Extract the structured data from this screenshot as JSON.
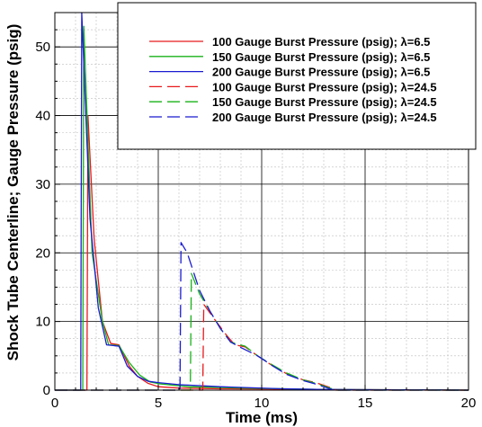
{
  "chart_data": {
    "type": "line",
    "xlabel": "Time (ms)",
    "ylabel": "Shock Tube Centerline; Gauge Pressure (psig)",
    "xlim": [
      0,
      20
    ],
    "ylim": [
      0,
      55
    ],
    "xticks": [
      0,
      5,
      10,
      15,
      20
    ],
    "yticks": [
      0,
      10,
      20,
      30,
      40,
      50
    ],
    "xtick_labels": [
      "0",
      "5",
      "10",
      "15",
      "20"
    ],
    "ytick_labels": [
      "0",
      "10",
      "20",
      "30",
      "40",
      "50"
    ],
    "grid": true,
    "legend_position": "top-right",
    "series": [
      {
        "name": "100 Gauge Burst Pressure (psig); λ=6.5",
        "color": "#e8191c",
        "dash": "solid",
        "points": [
          [
            0,
            0
          ],
          [
            1.55,
            0
          ],
          [
            1.6,
            40
          ],
          [
            1.9,
            22
          ],
          [
            2.3,
            10
          ],
          [
            2.7,
            6.8
          ],
          [
            3.1,
            6.6
          ],
          [
            3.6,
            3.5
          ],
          [
            4.0,
            2.0
          ],
          [
            4.5,
            1.0
          ],
          [
            5.0,
            0.5
          ],
          [
            6.0,
            0.3
          ],
          [
            8.0,
            0.2
          ],
          [
            13.0,
            0.1
          ],
          [
            20,
            0
          ]
        ]
      },
      {
        "name": "150 Gauge Burst Pressure (psig); λ=6.5",
        "color": "#18b218",
        "dash": "solid",
        "points": [
          [
            0,
            0
          ],
          [
            1.35,
            0
          ],
          [
            1.4,
            53
          ],
          [
            1.8,
            20
          ],
          [
            2.3,
            10
          ],
          [
            2.6,
            6.6
          ],
          [
            3.1,
            6.5
          ],
          [
            3.6,
            4.0
          ],
          [
            4.1,
            2.2
          ],
          [
            4.6,
            1.2
          ],
          [
            5.1,
            0.9
          ],
          [
            6.5,
            0.5
          ],
          [
            9.0,
            0.3
          ],
          [
            13.0,
            0.1
          ],
          [
            20,
            0
          ]
        ]
      },
      {
        "name": "200 Gauge Burst Pressure (psig); λ=6.5",
        "color": "#1b1bd1",
        "dash": "solid",
        "points": [
          [
            0,
            0
          ],
          [
            1.25,
            0
          ],
          [
            1.3,
            55
          ],
          [
            1.7,
            25
          ],
          [
            2.1,
            12
          ],
          [
            2.5,
            6.6
          ],
          [
            3.1,
            6.4
          ],
          [
            3.5,
            3.5
          ],
          [
            4.0,
            2.0
          ],
          [
            4.5,
            1.3
          ],
          [
            5.0,
            1.1
          ],
          [
            6.0,
            0.8
          ],
          [
            8.0,
            0.5
          ],
          [
            11.0,
            0.2
          ],
          [
            13.0,
            0.1
          ],
          [
            20,
            0
          ]
        ]
      },
      {
        "name": "100 Gauge Burst Pressure (psig); λ=24.5",
        "color": "#e8191c",
        "dash": "long",
        "points": [
          [
            0,
            0
          ],
          [
            7.15,
            0
          ],
          [
            7.2,
            12.5
          ],
          [
            7.8,
            10.0
          ],
          [
            8.3,
            8.0
          ],
          [
            8.7,
            6.6
          ],
          [
            9.2,
            6.3
          ],
          [
            9.8,
            5.0
          ],
          [
            10.5,
            3.6
          ],
          [
            11.2,
            2.4
          ],
          [
            12.0,
            1.5
          ],
          [
            12.6,
            1.1
          ],
          [
            13.0,
            0.7
          ],
          [
            13.4,
            0.3
          ],
          [
            13.6,
            0
          ],
          [
            20,
            0
          ]
        ]
      },
      {
        "name": "150 Gauge Burst Pressure (psig); λ=24.5",
        "color": "#18b218",
        "dash": "long",
        "points": [
          [
            0,
            0
          ],
          [
            6.55,
            0
          ],
          [
            6.6,
            17
          ],
          [
            7.0,
            14
          ],
          [
            7.5,
            11.5
          ],
          [
            8.0,
            9.0
          ],
          [
            8.5,
            7.0
          ],
          [
            9.2,
            6.4
          ],
          [
            9.8,
            5.0
          ],
          [
            10.5,
            3.7
          ],
          [
            11.2,
            2.5
          ],
          [
            12.0,
            1.5
          ],
          [
            12.6,
            1.0
          ],
          [
            13.0,
            0.6
          ],
          [
            13.4,
            0.2
          ],
          [
            13.6,
            0
          ],
          [
            20,
            0
          ]
        ]
      },
      {
        "name": "200 Gauge Burst Pressure (psig); λ=24.5",
        "color": "#1b1bd1",
        "dash": "long",
        "points": [
          [
            0,
            0
          ],
          [
            6.05,
            0
          ],
          [
            6.1,
            21.5
          ],
          [
            6.4,
            20
          ],
          [
            7.0,
            14.5
          ],
          [
            7.5,
            11.5
          ],
          [
            8.0,
            9.0
          ],
          [
            8.5,
            7.0
          ],
          [
            9.0,
            6.2
          ],
          [
            9.8,
            5.0
          ],
          [
            10.5,
            3.6
          ],
          [
            11.2,
            2.3
          ],
          [
            12.0,
            1.4
          ],
          [
            12.6,
            0.9
          ],
          [
            13.0,
            0.5
          ],
          [
            13.4,
            0.1
          ],
          [
            13.6,
            0
          ],
          [
            20,
            0
          ]
        ]
      }
    ]
  }
}
